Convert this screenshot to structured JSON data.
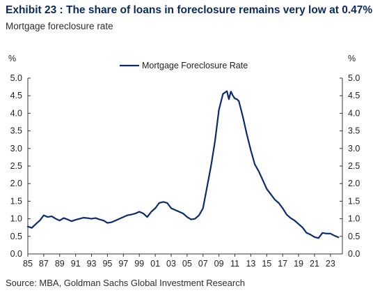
{
  "title": "Exhibit 23 : The share of loans in foreclosure remains very low at 0.47%",
  "subtitle": "Mortgage foreclosure rate",
  "source": "Source: MBA, Goldman Sachs Global Investment Research",
  "colors": {
    "line": "#0d2a6e",
    "title": "#0b2a5b"
  },
  "chart_data": {
    "type": "line",
    "ylabel_left": "%",
    "ylabel_right": "%",
    "ylim": [
      0,
      5
    ],
    "yticks": [
      "0.0",
      "0.5",
      "1.0",
      "1.5",
      "2.0",
      "2.5",
      "3.0",
      "3.5",
      "4.0",
      "4.5",
      "5.0"
    ],
    "xlim": [
      1985,
      2024.5
    ],
    "xticks": [
      "85",
      "87",
      "89",
      "91",
      "93",
      "95",
      "97",
      "99",
      "01",
      "03",
      "05",
      "07",
      "09",
      "11",
      "13",
      "15",
      "17",
      "19",
      "21",
      "23"
    ],
    "legend": "top-center",
    "grid": false,
    "series": [
      {
        "name": "Mortgage Foreclosure Rate",
        "x": [
          1985.0,
          1985.5,
          1986.0,
          1986.5,
          1987.0,
          1987.5,
          1988.0,
          1988.5,
          1989.0,
          1989.5,
          1990.0,
          1990.5,
          1991.0,
          1991.5,
          1992.0,
          1992.5,
          1993.0,
          1993.5,
          1994.0,
          1994.5,
          1995.0,
          1995.5,
          1996.0,
          1996.5,
          1997.0,
          1997.5,
          1998.0,
          1998.5,
          1999.0,
          1999.5,
          2000.0,
          2000.5,
          2001.0,
          2001.5,
          2002.0,
          2002.5,
          2003.0,
          2003.5,
          2004.0,
          2004.5,
          2005.0,
          2005.5,
          2006.0,
          2006.5,
          2007.0,
          2007.5,
          2008.0,
          2008.5,
          2009.0,
          2009.5,
          2010.0,
          2010.25,
          2010.5,
          2010.75,
          2011.0,
          2011.25,
          2011.5,
          2012.0,
          2012.5,
          2013.0,
          2013.5,
          2014.0,
          2014.5,
          2015.0,
          2015.5,
          2016.0,
          2016.5,
          2017.0,
          2017.5,
          2018.0,
          2018.5,
          2019.0,
          2019.5,
          2020.0,
          2020.5,
          2021.0,
          2021.5,
          2022.0,
          2022.5,
          2023.0,
          2023.5,
          2024.0
        ],
        "y": [
          0.78,
          0.74,
          0.85,
          0.95,
          1.1,
          1.05,
          1.07,
          1.0,
          0.95,
          1.02,
          0.98,
          0.93,
          0.97,
          1.0,
          1.03,
          1.02,
          1.0,
          1.02,
          0.98,
          0.95,
          0.88,
          0.9,
          0.95,
          1.0,
          1.05,
          1.1,
          1.12,
          1.15,
          1.2,
          1.15,
          1.05,
          1.2,
          1.3,
          1.45,
          1.48,
          1.45,
          1.3,
          1.25,
          1.2,
          1.15,
          1.05,
          0.98,
          1.0,
          1.1,
          1.3,
          1.9,
          2.5,
          3.2,
          4.1,
          4.55,
          4.63,
          4.4,
          4.62,
          4.5,
          4.42,
          4.4,
          4.35,
          3.9,
          3.4,
          2.95,
          2.55,
          2.35,
          2.1,
          1.85,
          1.7,
          1.55,
          1.45,
          1.3,
          1.12,
          1.02,
          0.95,
          0.85,
          0.75,
          0.6,
          0.55,
          0.48,
          0.45,
          0.6,
          0.58,
          0.58,
          0.52,
          0.47
        ]
      }
    ]
  }
}
